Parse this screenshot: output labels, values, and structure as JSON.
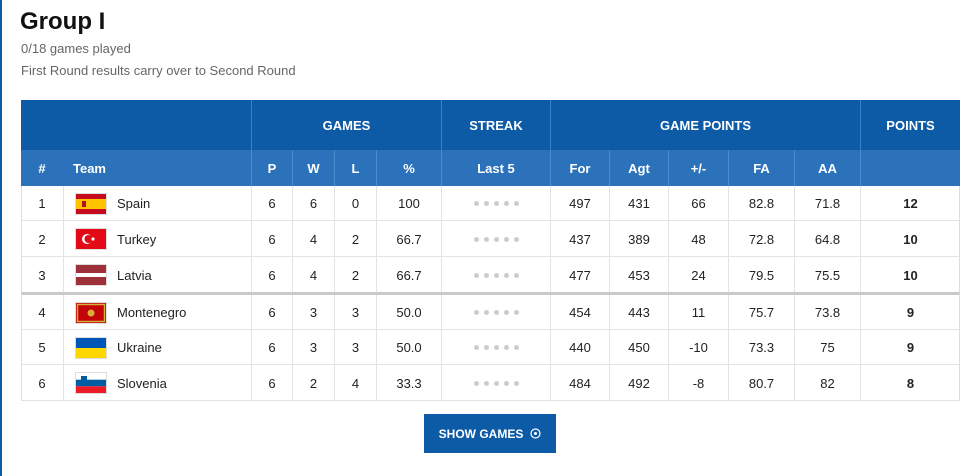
{
  "header": {
    "title": "Group I",
    "games_played": "0/18 games played",
    "note": "First Round results carry over to Second Round"
  },
  "table": {
    "group_headers": [
      "GAMES",
      "STREAK",
      "GAME POINTS",
      "POINTS"
    ],
    "columns": [
      "#",
      "Team",
      "P",
      "W",
      "L",
      "%",
      "Last 5",
      "For",
      "Agt",
      "+/-",
      "FA",
      "AA"
    ],
    "rows": [
      [
        "1",
        "Spain",
        "6",
        "6",
        "0",
        "100",
        "497",
        "431",
        "66",
        "82.8",
        "71.8",
        "12"
      ],
      [
        "2",
        "Turkey",
        "6",
        "4",
        "2",
        "66.7",
        "437",
        "389",
        "48",
        "72.8",
        "64.8",
        "10"
      ],
      [
        "3",
        "Latvia",
        "6",
        "4",
        "2",
        "66.7",
        "477",
        "453",
        "24",
        "79.5",
        "75.5",
        "10"
      ],
      [
        "4",
        "Montenegro",
        "6",
        "3",
        "3",
        "50.0",
        "454",
        "443",
        "11",
        "75.7",
        "73.8",
        "9"
      ],
      [
        "5",
        "Ukraine",
        "6",
        "3",
        "3",
        "50.0",
        "440",
        "450",
        "-10",
        "73.3",
        "75",
        "9"
      ],
      [
        "6",
        "Slovenia",
        "6",
        "2",
        "4",
        "33.3",
        "484",
        "492",
        "-8",
        "80.7",
        "82",
        "8"
      ]
    ]
  },
  "button": {
    "label": "SHOW GAMES"
  }
}
